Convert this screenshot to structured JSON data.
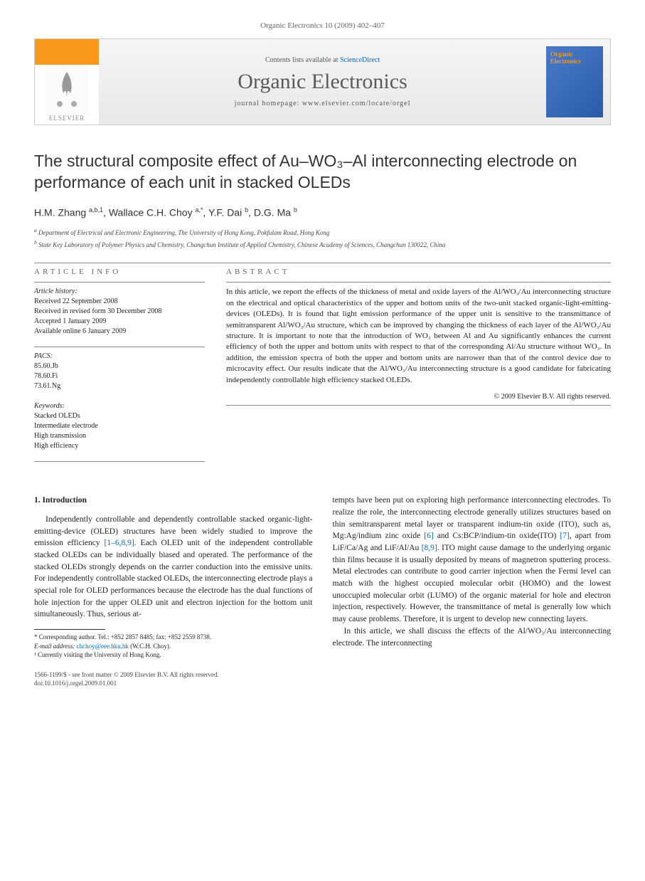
{
  "header": {
    "citation": "Organic Electronics 10 (2009) 402–407"
  },
  "banner": {
    "elsevier": "ELSEVIER",
    "contents_prefix": "Contents lists available at ",
    "contents_link": "ScienceDirect",
    "journal": "Organic Electronics",
    "homepage_prefix": "journal homepage: ",
    "homepage_url": "www.elsevier.com/locate/orgel",
    "cover_title": "Organic Electronics"
  },
  "title": "The structural composite effect of Au–WO₃–Al interconnecting electrode on performance of each unit in stacked OLEDs",
  "authors_html": "H.M. Zhang <sup>a,b,1</sup>, Wallace C.H. Choy <sup>a,*</sup>, Y.F. Dai <sup>b</sup>, D.G. Ma <sup>b</sup>",
  "affiliations": {
    "a": "Department of Electrical and Electronic Engineering, The University of Hong Kong, Pokfulam Road, Hong Kong",
    "b": "State Key Laboratory of Polymer Physics and Chemistry, Changchun Institute of Applied Chemistry, Chinese Academy of Sciences, Changchun 130022, China"
  },
  "info": {
    "header": "ARTICLE INFO",
    "history_label": "Article history:",
    "history": [
      "Received 22 September 2008",
      "Received in revised form 30 December 2008",
      "Accepted 1 January 2009",
      "Available online 6 January 2009"
    ],
    "pacs_label": "PACS:",
    "pacs": [
      "85.60.Jb",
      "78.60.Fi",
      "73.61.Ng"
    ],
    "keywords_label": "Keywords:",
    "keywords": [
      "Stacked OLEDs",
      "Intermediate electrode",
      "High transmission",
      "High efficiency"
    ]
  },
  "abstract": {
    "header": "ABSTRACT",
    "text": "In this article, we report the effects of the thickness of metal and oxide layers of the Al/WO₃/Au interconnecting structure on the electrical and optical characteristics of the upper and bottom units of the two-unit stacked organic-light-emitting-devices (OLEDs). It is found that light emission performance of the upper unit is sensitive to the transmittance of semitransparent Al/WO₃/Au structure, which can be improved by changing the thickness of each layer of the Al/WO₃/Au structure. It is important to note that the introduction of WO₃ between Al and Au significantly enhances the current efficiency of both the upper and bottom units with respect to that of the corresponding Al/Au structure without WO₃. In addition, the emission spectra of both the upper and bottom units are narrower than that of the control device due to microcavity effect. Our results indicate that the Al/WO₃/Au interconnecting structure is a good candidate for fabricating independently controllable high efficiency stacked OLEDs.",
    "copyright": "© 2009 Elsevier B.V. All rights reserved."
  },
  "body": {
    "section_heading": "1. Introduction",
    "col1_p1_a": "Independently controllable and dependently controllable stacked organic-light-emitting-device (OLED) structures have been widely studied to improve the emission efficiency ",
    "col1_ref1": "[1–6,8,9]",
    "col1_p1_b": ". Each OLED unit of the independent controllable stacked OLEDs can be individually biased and operated. The performance of the stacked OLEDs strongly depends on the carrier conduction into the emissive units. For independently controllable stacked OLEDs, the interconnecting electrode plays a special role for OLED performances because the electrode has the dual functions of hole injection for the upper OLED unit and electron injection for the bottom unit simultaneously. Thus, serious at-",
    "col2_p1_a": "tempts have been put on exploring high performance interconnecting electrodes. To realize the role, the interconnecting electrode generally utilizes structures based on thin semitransparent metal layer or transparent indium-tin oxide (ITO), such as, Mg:Ag/indium zinc oxide ",
    "col2_ref1": "[6]",
    "col2_p1_b": " and Cs:BCP/indium-tin oxide(ITO) ",
    "col2_ref2": "[7]",
    "col2_p1_c": ", apart from LiF/Ca/Ag and LiF/Al/Au ",
    "col2_ref3": "[8,9]",
    "col2_p1_d": ". ITO might cause damage to the underlying organic thin films because it is usually deposited by means of magnetron sputtering process. Metal electrodes can contribute to good carrier injection when the Fermi level can match with the highest occupied molecular orbit (HOMO) and the lowest unoccupied molecular orbit (LUMO) of the organic material for hole and electron injection, respectively. However, the transmittance of metal is generally low which may cause problems. Therefore, it is urgent to develop new connecting layers.",
    "col2_p2": "In this article, we shall discuss the effects of the Al/WO₃/Au interconnecting electrode. The interconnecting"
  },
  "footnotes": {
    "corr": "* Corresponding author. Tel.: +852 2857 8485; fax: +852 2559 8738.",
    "email_label": "E-mail address: ",
    "email": "chchoy@eee.hku.hk",
    "email_who": " (W.C.H. Choy).",
    "note1": "¹ Currently visiting the University of Hong Kong."
  },
  "bottom": {
    "issn": "1566-1199/$ - see front matter © 2009 Elsevier B.V. All rights reserved.",
    "doi": "doi:10.1016/j.orgel.2009.01.001"
  },
  "colors": {
    "link": "#0066cc",
    "elsevier_orange": "#f8981d",
    "cover_blue": "#4a7bc8",
    "text": "#222222",
    "border": "#cccccc"
  }
}
